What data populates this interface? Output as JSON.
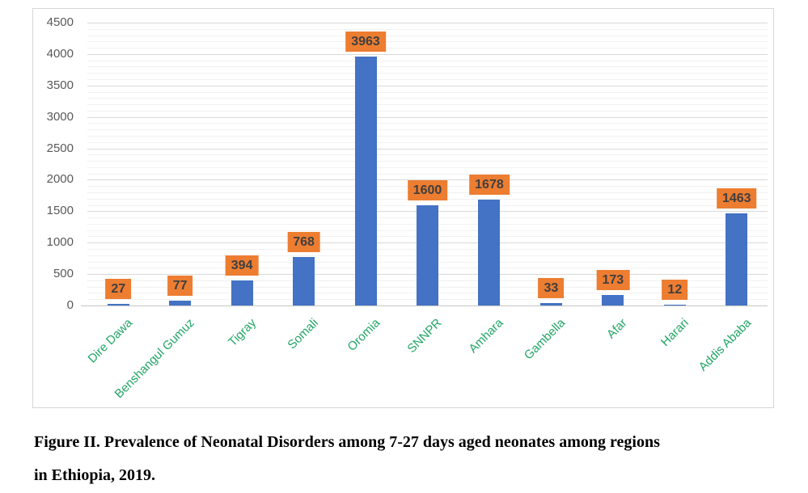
{
  "figure": {
    "caption_line1": "Figure II. Prevalence of Neonatal Disorders among 7-27 days aged neonates among regions",
    "caption_line2": "in Ethiopia, 2019."
  },
  "chart_data": {
    "type": "bar",
    "title": "",
    "xlabel": "",
    "ylabel": "",
    "categories": [
      "Dire Dawa",
      "Benshangul Gumuz",
      "Tigray",
      "Somali",
      "Oromia",
      "SNNPR",
      "Amhara",
      "Gambella",
      "Afar",
      "Harari",
      "Addis Ababa"
    ],
    "values": [
      27,
      77,
      394,
      768,
      3963,
      1600,
      1678,
      33,
      173,
      12,
      1463
    ],
    "data_labels_shown": true,
    "ylim": [
      0,
      4500
    ],
    "ytick_step": 500,
    "minor_gridline_step": 100,
    "grid": "on",
    "legend": "none",
    "colors": {
      "bar": "#4472c4",
      "data_label_background": "#ed7d31",
      "data_label_text": "#3f3f3f",
      "category_label_text": "#22a565",
      "axis_tick_text": "#595959",
      "major_gridline": "#d9d9d9",
      "minor_gridline": "#f1f1f1"
    }
  }
}
